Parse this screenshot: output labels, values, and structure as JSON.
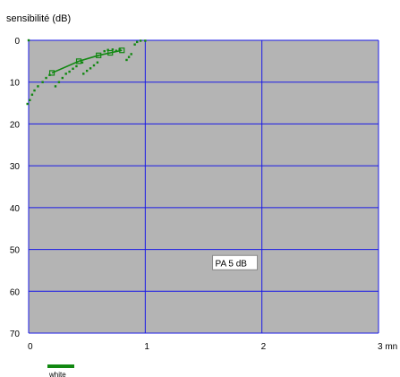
{
  "chart_data": {
    "type": "scatter",
    "ylabel": "sensibilité (dB)",
    "x_unit": "mn",
    "xlim": [
      0,
      3
    ],
    "ylim": [
      0,
      70
    ],
    "y_reversed": true,
    "y_ticks": [
      "0",
      "10",
      "20",
      "30",
      "40",
      "50",
      "60",
      "70"
    ],
    "x_ticks": [
      "0",
      "1",
      "2",
      "3 mn"
    ],
    "grid": true,
    "plot_background": "#b4b4b4",
    "grid_color": "#1a1ae6",
    "annotation": "PA  5 dB",
    "annotation_pos": {
      "x": 1.6,
      "y": 54
    },
    "legend": {
      "label": "white",
      "color": "#118811"
    },
    "series": [
      {
        "name": "white",
        "color": "#118811",
        "style": "line-markers",
        "points": [
          {
            "x": 0.2,
            "y": 7.8
          },
          {
            "x": 0.43,
            "y": 5.0
          },
          {
            "x": 0.6,
            "y": 3.6
          },
          {
            "x": 0.7,
            "y": 3.0
          },
          {
            "x": 0.8,
            "y": 2.4
          }
        ]
      },
      {
        "name": "",
        "color": "#118811",
        "style": "dots",
        "points": [
          {
            "x": -0.01,
            "y": 15.2
          },
          {
            "x": 0.01,
            "y": 14.3
          },
          {
            "x": 0.03,
            "y": 13.0
          },
          {
            "x": 0.05,
            "y": 12.0
          },
          {
            "x": 0.08,
            "y": 11.0
          },
          {
            "x": 0.12,
            "y": 10.0
          },
          {
            "x": 0.15,
            "y": 9.0
          },
          {
            "x": 0.18,
            "y": 8.3
          },
          {
            "x": 0.23,
            "y": 11.0
          },
          {
            "x": 0.26,
            "y": 10.0
          },
          {
            "x": 0.29,
            "y": 9.0
          },
          {
            "x": 0.32,
            "y": 8.0
          },
          {
            "x": 0.35,
            "y": 7.5
          },
          {
            "x": 0.38,
            "y": 6.8
          },
          {
            "x": 0.41,
            "y": 6.2
          },
          {
            "x": 0.46,
            "y": 5.3
          },
          {
            "x": 0.47,
            "y": 8.0
          },
          {
            "x": 0.5,
            "y": 7.3
          },
          {
            "x": 0.53,
            "y": 6.7
          },
          {
            "x": 0.56,
            "y": 6.0
          },
          {
            "x": 0.59,
            "y": 5.3
          },
          {
            "x": 0.65,
            "y": 2.6
          },
          {
            "x": 0.68,
            "y": 2.3
          },
          {
            "x": 0.72,
            "y": 2.2
          },
          {
            "x": 0.75,
            "y": 2.5
          },
          {
            "x": 0.78,
            "y": 2.1
          },
          {
            "x": 0.84,
            "y": 4.7
          },
          {
            "x": 0.86,
            "y": 4.0
          },
          {
            "x": 0.88,
            "y": 3.3
          },
          {
            "x": 0.91,
            "y": 1.0
          },
          {
            "x": 0.93,
            "y": 0.4
          },
          {
            "x": 0.96,
            "y": 0.1
          },
          {
            "x": 1.0,
            "y": 0.1
          }
        ]
      },
      {
        "name": "",
        "color": "#118811",
        "style": "dots",
        "points": [
          {
            "x": 0.0,
            "y": 0.0
          }
        ]
      }
    ]
  }
}
